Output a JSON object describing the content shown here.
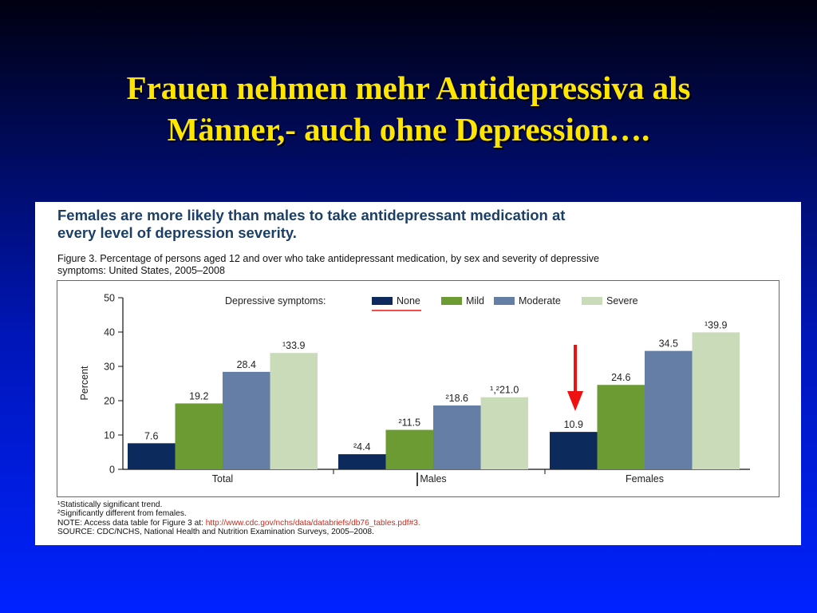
{
  "slide": {
    "title_line1": "Frauen nehmen mehr Antidepressiva als",
    "title_line2": "Männer,- auch ohne Depression…."
  },
  "figure": {
    "headline_line1": "Females are more likely than males to take antidepressant medication at",
    "headline_line2": "every level of depression severity.",
    "caption_line1": "Figure 3. Percentage of persons aged 12 and over who take antidepressant medication, by sex and severity of depressive",
    "caption_line2": "symptoms: United States, 2005–2008",
    "notes": {
      "note1": "¹Statistically significant trend.",
      "note2": "²Significantly different from females.",
      "note3_prefix": "NOTE: Access data table for Figure 3 at: ",
      "note3_link": "http://www.cdc.gov/nchs/data/databriefs/db76_tables.pdf#3.",
      "note4": "SOURCE: CDC/NCHS, National Health and Nutrition Examination Surveys, 2005–2008."
    }
  },
  "chart_data": {
    "type": "bar",
    "title": "",
    "xlabel": "",
    "ylabel": "Percent",
    "ylim": [
      0,
      50
    ],
    "yticks": [
      0,
      10,
      20,
      30,
      40,
      50
    ],
    "legend_title": "Depressive symptoms:",
    "legend_position": "top",
    "grid": false,
    "categories": [
      "Total",
      "Males",
      "Females"
    ],
    "series": [
      {
        "name": "None",
        "color": "#0d2a5c",
        "values": [
          7.6,
          4.4,
          10.9
        ],
        "labels": [
          "7.6",
          "²4.4",
          "10.9"
        ]
      },
      {
        "name": "Mild",
        "color": "#6d9b33",
        "values": [
          19.2,
          11.5,
          24.6
        ],
        "labels": [
          "19.2",
          "²11.5",
          "24.6"
        ]
      },
      {
        "name": "Moderate",
        "color": "#647ea6",
        "values": [
          28.4,
          18.6,
          34.5
        ],
        "labels": [
          "28.4",
          "²18.6",
          "34.5"
        ]
      },
      {
        "name": "Severe",
        "color": "#c9dbb8",
        "values": [
          33.9,
          21.0,
          39.9
        ],
        "labels": [
          "¹33.9",
          "¹,²21.0",
          "¹39.9"
        ]
      }
    ],
    "annotations": [
      {
        "type": "arrow",
        "color": "#ee1111",
        "points_to": "Females / None"
      },
      {
        "type": "underline",
        "color": "#ee1111",
        "target": "None"
      },
      {
        "type": "text-cursor",
        "color": "#111111",
        "near": "Males"
      }
    ]
  }
}
